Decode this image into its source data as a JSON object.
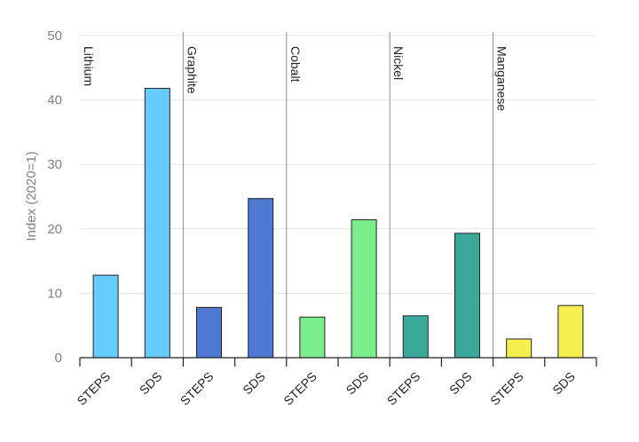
{
  "chart_data": {
    "type": "bar",
    "ylabel": "Index (2020=1)",
    "ylim": [
      0,
      50
    ],
    "yticks": [
      "0",
      "10",
      "20",
      "30",
      "40",
      "50"
    ],
    "grid": true,
    "groups": [
      {
        "name": "Lithium",
        "color": "#66ccff",
        "bars": [
          {
            "category": "STEPS",
            "value": 12.8
          },
          {
            "category": "SDS",
            "value": 41.8
          }
        ]
      },
      {
        "name": "Graphite",
        "color": "#4f78d2",
        "bars": [
          {
            "category": "STEPS",
            "value": 7.8
          },
          {
            "category": "SDS",
            "value": 24.7
          }
        ]
      },
      {
        "name": "Cobalt",
        "color": "#7aee8c",
        "bars": [
          {
            "category": "STEPS",
            "value": 6.3
          },
          {
            "category": "SDS",
            "value": 21.4
          }
        ]
      },
      {
        "name": "Nickel",
        "color": "#3aa99c",
        "bars": [
          {
            "category": "STEPS",
            "value": 6.5
          },
          {
            "category": "SDS",
            "value": 19.3
          }
        ]
      },
      {
        "name": "Manganese",
        "color": "#f7ef4f",
        "bars": [
          {
            "category": "STEPS",
            "value": 2.9
          },
          {
            "category": "SDS",
            "value": 8.1
          }
        ]
      }
    ]
  }
}
